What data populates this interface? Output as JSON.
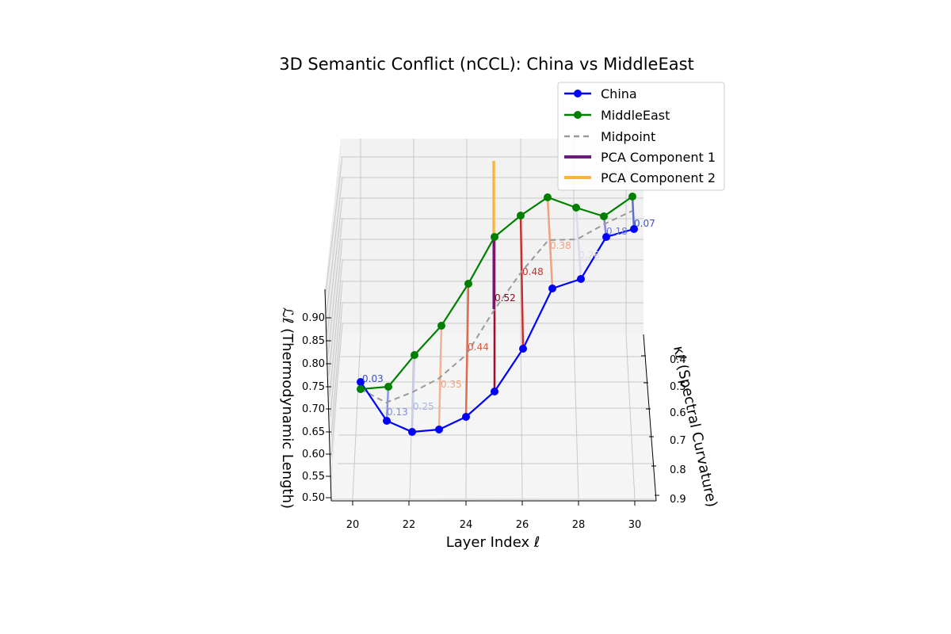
{
  "chart_data": {
    "type": "line3d",
    "title": "3D Semantic Conflict (nCCL): China vs MiddleEast",
    "xlabel": "Layer Index ℓ",
    "ylabel": "κℓ (Spectral Curvature)",
    "zlabel": "ℒℓ (Thermodynamic Length)",
    "x_ticks": [
      "20",
      "22",
      "24",
      "26",
      "28",
      "30"
    ],
    "y_ticks": [
      "0.4",
      "0.5",
      "0.6",
      "0.7",
      "0.8",
      "0.9"
    ],
    "z_ticks": [
      "0.50",
      "0.55",
      "0.60",
      "0.65",
      "0.70",
      "0.75",
      "0.80",
      "0.85",
      "0.90"
    ],
    "grid": true,
    "legend_position": "top-right",
    "layers": [
      20,
      21,
      22,
      23,
      24,
      25,
      26,
      27,
      28,
      29,
      30
    ],
    "series": [
      {
        "name": "China",
        "color": "#0000ff",
        "marker": "circle",
        "z": [
          0.77,
          0.67,
          0.65,
          0.65,
          0.67,
          0.72,
          0.8,
          0.87,
          0.89,
          0.93,
          0.93
        ]
      },
      {
        "name": "MiddleEast",
        "color": "#008000",
        "marker": "circle",
        "z": [
          0.75,
          0.76,
          0.78,
          0.8,
          0.85,
          0.9,
          0.93,
          0.95,
          0.95,
          0.95,
          0.97
        ]
      },
      {
        "name": "Midpoint",
        "color": "#999999",
        "style": "dashed"
      },
      {
        "name": "PCA Component 1",
        "color": "#6a1b7a"
      },
      {
        "name": "PCA Component 2",
        "color": "#fbb43c"
      }
    ],
    "distance_labels": [
      "0.03",
      "0.13",
      "0.25",
      "0.35",
      "0.44",
      "0.52",
      "0.48",
      "0.38",
      "0.26",
      "0.18",
      "0.07"
    ]
  }
}
